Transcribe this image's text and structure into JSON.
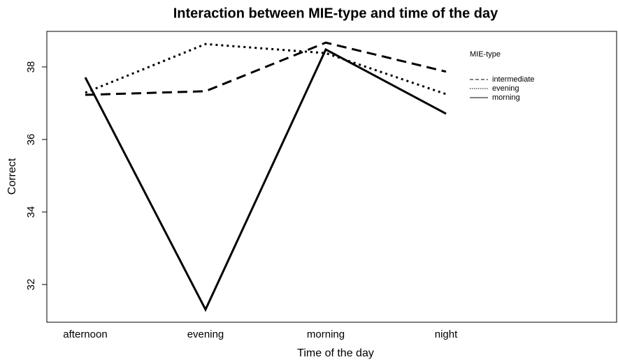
{
  "chart_data": {
    "type": "line",
    "title": "Interaction between MIE-type and time of the day",
    "x_label": "Time of the day",
    "y_label": "Correct",
    "categories": [
      "afternoon",
      "evening",
      "morning",
      "night"
    ],
    "series": [
      {
        "name": "intermediate",
        "color": "#000000",
        "linestyle": "dashed",
        "values": [
          37.23,
          37.33,
          38.67,
          37.87
        ]
      },
      {
        "name": "evening",
        "color": "#000000",
        "linestyle": "dotted",
        "values": [
          37.29,
          38.63,
          38.38,
          37.25
        ]
      },
      {
        "name": "morning",
        "color": "#000000",
        "linestyle": "solid",
        "values": [
          37.71,
          31.31,
          38.48,
          36.71
        ]
      }
    ],
    "ylim": [
      30.96,
      38.98
    ],
    "yticks": [
      32,
      34,
      36,
      38
    ],
    "legend_title": "MIE-type",
    "legend": "top-right",
    "grid": false
  }
}
